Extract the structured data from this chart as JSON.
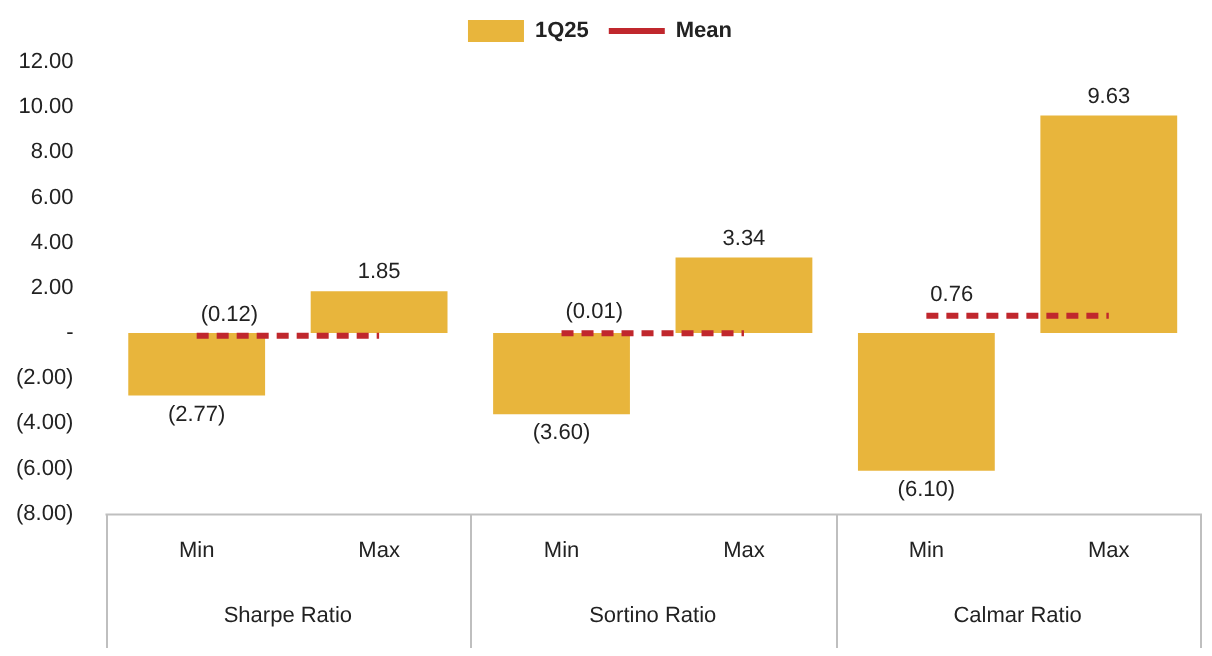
{
  "chart_data": {
    "type": "bar",
    "categories": [
      "Min",
      "Max",
      "Min",
      "Max",
      "Min",
      "Max"
    ],
    "series": [
      {
        "name": "1Q25",
        "color": "#e8b53c",
        "values": [
          -2.77,
          1.85,
          -3.6,
          3.34,
          -6.1,
          9.63
        ],
        "value_labels": [
          "(2.77)",
          "1.85",
          "(3.60)",
          "3.34",
          "(6.10)",
          "9.63"
        ]
      },
      {
        "name": "Mean",
        "type": "line",
        "color": "#c0272d",
        "line_style": "dashed",
        "marker": "none",
        "values": [
          -0.12,
          -0.12,
          -0.01,
          -0.01,
          0.76,
          0.76
        ],
        "value_labels": [
          "(0.12)",
          null,
          "(0.01)",
          null,
          "0.76",
          null
        ]
      }
    ],
    "annotations": [
      "Sharpe Ratio",
      "Sortino Ratio",
      "Calmar Ratio"
    ],
    "ylim": [
      -8,
      12
    ],
    "yticks": [
      {
        "value": -8,
        "label": "(8.00)"
      },
      {
        "value": -6,
        "label": "(6.00)"
      },
      {
        "value": -4,
        "label": "(4.00)"
      },
      {
        "value": -2,
        "label": "(2.00)"
      },
      {
        "value": 0,
        "label": "-"
      },
      {
        "value": 2,
        "label": "2.00"
      },
      {
        "value": 4,
        "label": "4.00"
      },
      {
        "value": 6,
        "label": "6.00"
      },
      {
        "value": 8,
        "label": "8.00"
      },
      {
        "value": 10,
        "label": "10.00"
      },
      {
        "value": 12,
        "label": "12.00"
      }
    ],
    "grid": false,
    "legend": "top"
  }
}
